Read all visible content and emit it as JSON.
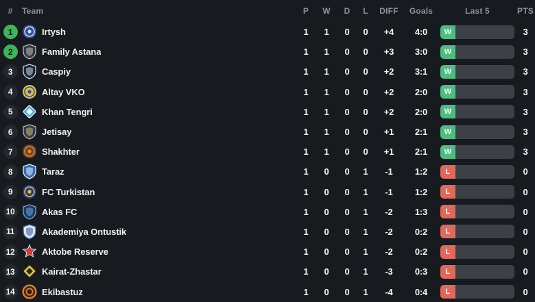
{
  "table": {
    "columns": {
      "rank": "#",
      "team": "Team",
      "p": "P",
      "w": "W",
      "d": "D",
      "l": "L",
      "diff": "DIFF",
      "goals": "Goals",
      "last5": "Last 5",
      "pts": "PTS"
    },
    "rows": [
      {
        "rank": "1",
        "promotion": true,
        "team": "Irtysh",
        "icon": {
          "name": "irtysh-crest-icon",
          "shape": "circle",
          "primary": "#2e4e9e",
          "secondary": "#cfdcf0"
        },
        "p": "1",
        "w": "1",
        "d": "0",
        "l": "0",
        "diff": "+4",
        "goals": "4:0",
        "last5": [
          "W"
        ],
        "pts": "3"
      },
      {
        "rank": "2",
        "promotion": true,
        "team": "Family Astana",
        "icon": {
          "name": "family-astana-crest-icon",
          "shape": "shield",
          "primary": "#33373c",
          "secondary": "#b9bdc2"
        },
        "p": "1",
        "w": "1",
        "d": "0",
        "l": "0",
        "diff": "+3",
        "goals": "3:0",
        "last5": [
          "W"
        ],
        "pts": "3"
      },
      {
        "rank": "3",
        "promotion": false,
        "team": "Caspiy",
        "icon": {
          "name": "caspiy-crest-icon",
          "shape": "shield",
          "primary": "#1c2733",
          "secondary": "#bfd9e6"
        },
        "p": "1",
        "w": "1",
        "d": "0",
        "l": "0",
        "diff": "+2",
        "goals": "3:1",
        "last5": [
          "W"
        ],
        "pts": "3"
      },
      {
        "rank": "4",
        "promotion": false,
        "team": "Altay VKO",
        "icon": {
          "name": "altay-vko-crest-icon",
          "shape": "circle",
          "primary": "#e5bf3a",
          "secondary": "#2c4f9e"
        },
        "p": "1",
        "w": "1",
        "d": "0",
        "l": "0",
        "diff": "+2",
        "goals": "2:0",
        "last5": [
          "W"
        ],
        "pts": "3"
      },
      {
        "rank": "5",
        "promotion": false,
        "team": "Khan Tengri",
        "icon": {
          "name": "khan-tengri-crest-icon",
          "shape": "diamond",
          "primary": "#57aede",
          "secondary": "#eaf4fb"
        },
        "p": "1",
        "w": "1",
        "d": "0",
        "l": "0",
        "diff": "+2",
        "goals": "2:0",
        "last5": [
          "W"
        ],
        "pts": "3"
      },
      {
        "rank": "6",
        "promotion": false,
        "team": "Jetisay",
        "icon": {
          "name": "jetisay-crest-icon",
          "shape": "shield",
          "primary": "#2c3a72",
          "secondary": "#d9b64a"
        },
        "p": "1",
        "w": "1",
        "d": "0",
        "l": "0",
        "diff": "+1",
        "goals": "2:1",
        "last5": [
          "W"
        ],
        "pts": "3"
      },
      {
        "rank": "7",
        "promotion": false,
        "team": "Shakhter",
        "icon": {
          "name": "shakhter-crest-icon",
          "shape": "circle",
          "primary": "#6e452a",
          "secondary": "#e0872f"
        },
        "p": "1",
        "w": "1",
        "d": "0",
        "l": "0",
        "diff": "+1",
        "goals": "2:1",
        "last5": [
          "W"
        ],
        "pts": "3"
      },
      {
        "rank": "8",
        "promotion": false,
        "team": "Taraz",
        "icon": {
          "name": "taraz-crest-icon",
          "shape": "shield",
          "primary": "#2f6db5",
          "secondary": "#e8eef5"
        },
        "p": "1",
        "w": "0",
        "d": "0",
        "l": "1",
        "diff": "-1",
        "goals": "1:2",
        "last5": [
          "L"
        ],
        "pts": "0"
      },
      {
        "rank": "9",
        "promotion": false,
        "team": "FC Turkistan",
        "icon": {
          "name": "fc-turkistan-crest-icon",
          "shape": "circle",
          "primary": "#1c3f93",
          "secondary": "#ecb93a"
        },
        "p": "1",
        "w": "0",
        "d": "0",
        "l": "1",
        "diff": "-1",
        "goals": "1:2",
        "last5": [
          "L"
        ],
        "pts": "0"
      },
      {
        "rank": "10",
        "promotion": false,
        "team": "Akas FC",
        "icon": {
          "name": "akas-fc-crest-icon",
          "shape": "shield",
          "primary": "#1d3a66",
          "secondary": "#6fa8d8"
        },
        "p": "1",
        "w": "0",
        "d": "0",
        "l": "1",
        "diff": "-2",
        "goals": "1:3",
        "last5": [
          "L"
        ],
        "pts": "0"
      },
      {
        "rank": "11",
        "promotion": false,
        "team": "Akademiya Ontustik",
        "icon": {
          "name": "akademiya-ontustik-crest-icon",
          "shape": "shield",
          "primary": "#dde4ec",
          "secondary": "#2b5ca8"
        },
        "p": "1",
        "w": "0",
        "d": "0",
        "l": "1",
        "diff": "-2",
        "goals": "0:2",
        "last5": [
          "L"
        ],
        "pts": "0"
      },
      {
        "rank": "12",
        "promotion": false,
        "team": "Aktobe Reserve",
        "icon": {
          "name": "aktobe-reserve-crest-icon",
          "shape": "star",
          "primary": "#d23c3c",
          "secondary": "#f0eff1"
        },
        "p": "1",
        "w": "0",
        "d": "0",
        "l": "1",
        "diff": "-2",
        "goals": "0:2",
        "last5": [
          "L"
        ],
        "pts": "0"
      },
      {
        "rank": "13",
        "promotion": false,
        "team": "Kairat-Zhastar",
        "icon": {
          "name": "kairat-zhastar-crest-icon",
          "shape": "diamond",
          "primary": "#e2c52f",
          "secondary": "#26272b"
        },
        "p": "1",
        "w": "0",
        "d": "0",
        "l": "1",
        "diff": "-3",
        "goals": "0:3",
        "last5": [
          "L"
        ],
        "pts": "0"
      },
      {
        "rank": "14",
        "promotion": false,
        "team": "Ekibastuz",
        "icon": {
          "name": "ekibastuz-crest-icon",
          "shape": "ring",
          "primary": "#dd7b30",
          "secondary": "#2b221c"
        },
        "p": "1",
        "w": "0",
        "d": "0",
        "l": "1",
        "diff": "-4",
        "goals": "0:4",
        "last5": [
          "L"
        ],
        "pts": "0"
      }
    ]
  },
  "colors": {
    "background": "#171a1e",
    "promotion_green": "#3cb45a",
    "win_badge": "#4dbd82",
    "loss_badge": "#e0695b",
    "bar_track": "#3b4147",
    "header_text": "#8e9398"
  }
}
